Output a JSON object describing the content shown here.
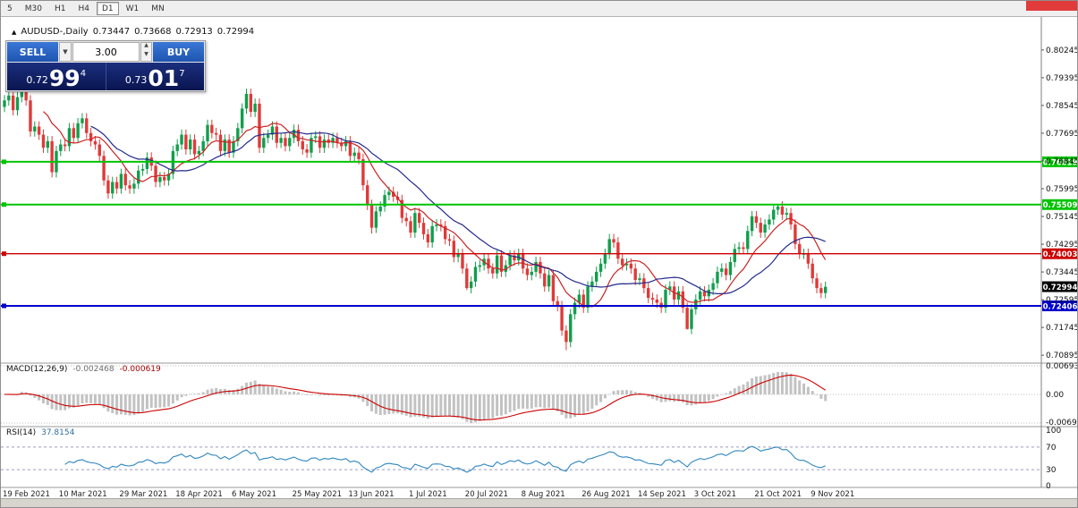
{
  "toolbar": {
    "timeframes": [
      "5",
      "M30",
      "H1",
      "H4",
      "D1",
      "W1",
      "MN"
    ],
    "active": "D1"
  },
  "decor": {
    "red_corner_color": "#E23B3B"
  },
  "chart_header": {
    "marker": "▲",
    "symbol": "AUDUSD-,Daily",
    "open": "0.73447",
    "high": "0.73668",
    "low": "0.72913",
    "close": "0.72994"
  },
  "trade_panel": {
    "sell_label": "SELL",
    "buy_label": "BUY",
    "volume": "3.00",
    "combo_icon": "▼",
    "spin_up": "▲",
    "spin_down": "▼",
    "bid": {
      "prefix": "0.72",
      "big": "99",
      "sup": "4"
    },
    "ask": {
      "prefix": "0.73",
      "big": "01",
      "sup": "7"
    },
    "button_color": "#2A63C8",
    "price_box_color": "#0C175A"
  },
  "price_axis": {
    "ticks": [
      "0.80245",
      "0.79395",
      "0.78545",
      "0.77695",
      "0.76845",
      "0.75995",
      "0.75145",
      "0.74295",
      "0.73445",
      "0.72595",
      "0.71745",
      "0.70895"
    ]
  },
  "hlines": [
    {
      "text": "0.76819",
      "value": 0.76819,
      "color": "#00C400",
      "width": 2
    },
    {
      "text": "0.75509",
      "value": 0.75509,
      "color": "#00C400",
      "width": 2
    },
    {
      "text": "0.74003",
      "value": 0.74003,
      "color": "#CC0000",
      "width": 1.3
    },
    {
      "text": "0.72406",
      "value": 0.72406,
      "color": "#0000CC",
      "width": 2
    }
  ],
  "current_price": {
    "text": "0.72994",
    "value": 0.72994,
    "color": "#000000"
  },
  "macd": {
    "label": "MACD(12,26,9)",
    "value_main": "-0.002468",
    "value_signal": "-0.000619",
    "scale": [
      "0.006936",
      "0.00",
      "-0.006936"
    ],
    "params": {
      "fast": 12,
      "slow": 26,
      "signal": 9
    },
    "histogram_color": "#C2C2C2",
    "signal_color": "#CC0000"
  },
  "rsi": {
    "label": "RSI(14)",
    "value": "37.8154",
    "period": 14,
    "scale": [
      "100",
      "70",
      "30",
      "0"
    ],
    "levels": [
      70,
      30
    ],
    "line_color": "#2E86C1"
  },
  "dates": [
    "19 Feb 2021",
    "10 Mar 2021",
    "29 Mar 2021",
    "18 Apr 2021",
    "6 May 2021",
    "25 May 2021",
    "13 Jun 2021",
    "1 Jul 2021",
    "20 Jul 2021",
    "8 Aug 2021",
    "26 Aug 2021",
    "14 Sep 2021",
    "3 Oct 2021",
    "21 Oct 2021",
    "9 Nov 2021"
  ],
  "chart_data": {
    "type": "candlestick",
    "symbol": "AUDUSD",
    "timeframe": "Daily",
    "ohlc_last": {
      "open": 0.73447,
      "high": 0.73668,
      "low": 0.72913,
      "close": 0.72994
    },
    "ylim": [
      0.70895,
      0.80245
    ],
    "first_open": 0.785,
    "wick": 0.0016,
    "up_color": "#119E4C",
    "down_color": "#DF3A3A",
    "ma_fast_period": 10,
    "ma_slow_period": 21,
    "ma_fast_color": "#CC2222",
    "ma_slow_color": "#232A8C",
    "closes": [
      0.787,
      0.7885,
      0.784,
      0.788,
      0.796,
      0.787,
      0.7775,
      0.779,
      0.7765,
      0.7725,
      0.7745,
      0.765,
      0.7715,
      0.7735,
      0.773,
      0.7785,
      0.7755,
      0.78,
      0.7815,
      0.777,
      0.7745,
      0.7735,
      0.77,
      0.7625,
      0.7585,
      0.762,
      0.76,
      0.7645,
      0.761,
      0.76,
      0.7615,
      0.7655,
      0.766,
      0.7695,
      0.767,
      0.762,
      0.7635,
      0.7625,
      0.7645,
      0.7715,
      0.7735,
      0.7765,
      0.772,
      0.775,
      0.7705,
      0.7715,
      0.7745,
      0.7795,
      0.777,
      0.7765,
      0.7715,
      0.775,
      0.771,
      0.7745,
      0.7785,
      0.7845,
      0.789,
      0.7835,
      0.786,
      0.7725,
      0.7755,
      0.7765,
      0.779,
      0.774,
      0.7755,
      0.773,
      0.7755,
      0.778,
      0.7745,
      0.772,
      0.771,
      0.7755,
      0.776,
      0.7725,
      0.775,
      0.774,
      0.7755,
      0.774,
      0.773,
      0.7745,
      0.77,
      0.771,
      0.769,
      0.761,
      0.755,
      0.748,
      0.753,
      0.7545,
      0.758,
      0.759,
      0.7575,
      0.7565,
      0.751,
      0.75,
      0.7465,
      0.7525,
      0.7495,
      0.746,
      0.7435,
      0.7485,
      0.749,
      0.7485,
      0.7445,
      0.744,
      0.739,
      0.74,
      0.7355,
      0.7295,
      0.7315,
      0.736,
      0.7365,
      0.7385,
      0.7355,
      0.734,
      0.7395,
      0.7345,
      0.7365,
      0.7395,
      0.738,
      0.74,
      0.7355,
      0.7335,
      0.7345,
      0.7375,
      0.734,
      0.73,
      0.7335,
      0.7255,
      0.724,
      0.7165,
      0.713,
      0.7215,
      0.725,
      0.7275,
      0.7235,
      0.73,
      0.7315,
      0.7345,
      0.737,
      0.74,
      0.7445,
      0.7435,
      0.7385,
      0.7365,
      0.737,
      0.7355,
      0.732,
      0.7325,
      0.7295,
      0.7265,
      0.726,
      0.725,
      0.7235,
      0.729,
      0.73,
      0.726,
      0.7285,
      0.7235,
      0.717,
      0.723,
      0.726,
      0.7285,
      0.727,
      0.729,
      0.731,
      0.7345,
      0.7355,
      0.7335,
      0.7375,
      0.7415,
      0.742,
      0.7415,
      0.747,
      0.7515,
      0.7495,
      0.7465,
      0.749,
      0.7505,
      0.7535,
      0.7545,
      0.752,
      0.7525,
      0.749,
      0.743,
      0.74,
      0.74,
      0.737,
      0.7325,
      0.7295,
      0.728,
      0.7299
    ],
    "overrides": {
      "4": {
        "h": 0.8025
      },
      "85": {
        "l": 0.7462
      },
      "107": {
        "l": 0.7289
      },
      "130": {
        "l": 0.7105
      },
      "158": {
        "l": 0.7168
      },
      "179": {
        "h": 0.755
      }
    }
  }
}
